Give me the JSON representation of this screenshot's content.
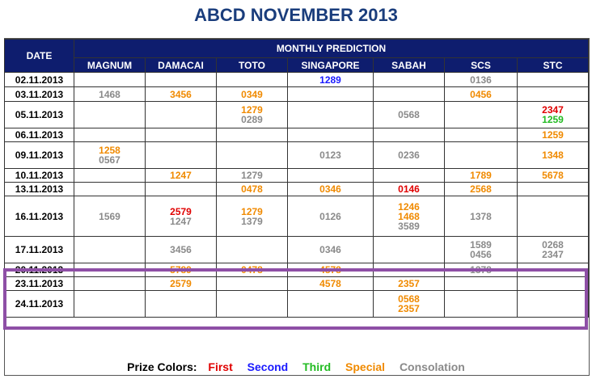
{
  "title": "ABCD NOVEMBER 2013",
  "header": {
    "date": "DATE",
    "monthly": "MONTHLY PREDICTION",
    "columns": [
      "MAGNUM",
      "DAMACAI",
      "TOTO",
      "SINGAPORE",
      "SABAH",
      "SCS",
      "STC"
    ]
  },
  "colors": {
    "first": "#e00000",
    "second": "#1a1aff",
    "third": "#22bb22",
    "special": "#f08a00",
    "consolation": "#8a8a8a",
    "header_bg": "#0e1d6e",
    "highlight_border": "#8e4fa6"
  },
  "rows": [
    {
      "date": "02.11.2013",
      "cells": [
        [],
        [],
        [],
        [
          [
            "1289",
            "second"
          ]
        ],
        [],
        [
          [
            "0136",
            "consolation"
          ]
        ],
        []
      ]
    },
    {
      "date": "03.11.2013",
      "cells": [
        [
          [
            "1468",
            "consolation"
          ]
        ],
        [
          [
            "3456",
            "special"
          ]
        ],
        [
          [
            "0349",
            "special"
          ]
        ],
        [],
        [],
        [
          [
            "0456",
            "special"
          ]
        ],
        []
      ]
    },
    {
      "date": "05.11.2013",
      "cells": [
        [],
        [],
        [
          [
            "1279",
            "special"
          ],
          [
            "0289",
            "consolation"
          ]
        ],
        [],
        [
          [
            "0568",
            "consolation"
          ]
        ],
        [],
        [
          [
            "2347",
            "first"
          ],
          [
            "1259",
            "third"
          ]
        ]
      ]
    },
    {
      "date": "06.11.2013",
      "cells": [
        [],
        [],
        [],
        [],
        [],
        [],
        [
          [
            "1259",
            "special"
          ]
        ]
      ]
    },
    {
      "date": "09.11.2013",
      "cells": [
        [
          [
            "1258",
            "special"
          ],
          [
            "0567",
            "consolation"
          ]
        ],
        [],
        [],
        [
          [
            "0123",
            "consolation"
          ]
        ],
        [
          [
            "0236",
            "consolation"
          ]
        ],
        [],
        [
          [
            "1348",
            "special"
          ]
        ]
      ]
    },
    {
      "date": "10.11.2013",
      "cells": [
        [],
        [
          [
            "1247",
            "special"
          ]
        ],
        [
          [
            "1279",
            "consolation"
          ]
        ],
        [],
        [],
        [
          [
            "1789",
            "special"
          ]
        ],
        [
          [
            "5678",
            "special"
          ]
        ]
      ]
    },
    {
      "date": "13.11.2013",
      "cells": [
        [],
        [],
        [
          [
            "0478",
            "special"
          ]
        ],
        [
          [
            "0346",
            "special"
          ]
        ],
        [
          [
            "0146",
            "first"
          ]
        ],
        [
          [
            "2568",
            "special"
          ]
        ],
        []
      ]
    },
    {
      "date": "16.11.2013",
      "cells": [
        [
          [
            "1569",
            "consolation"
          ]
        ],
        [
          [
            "2579",
            "first"
          ],
          [
            "1247",
            "consolation"
          ]
        ],
        [
          [
            "1279",
            "special"
          ],
          [
            "1379",
            "consolation"
          ]
        ],
        [
          [
            "0126",
            "consolation"
          ]
        ],
        [
          [
            "1246",
            "special"
          ],
          [
            "1468",
            "special"
          ],
          [
            "3589",
            "consolation"
          ]
        ],
        [
          [
            "1378",
            "consolation"
          ]
        ],
        []
      ]
    },
    {
      "date": "17.11.2013",
      "cells": [
        [],
        [
          [
            "3456",
            "consolation"
          ]
        ],
        [],
        [
          [
            "0346",
            "consolation"
          ]
        ],
        [],
        [
          [
            "1589",
            "consolation"
          ],
          [
            "0456",
            "consolation"
          ]
        ],
        [
          [
            "0268",
            "consolation"
          ],
          [
            "2347",
            "consolation"
          ]
        ]
      ]
    },
    {
      "date": "20.11.2013",
      "cells": [
        [],
        [
          [
            "5789",
            "special"
          ]
        ],
        [
          [
            "0478",
            "special"
          ]
        ],
        [
          [
            "4578",
            "special"
          ]
        ],
        [],
        [
          [
            "1378",
            "consolation"
          ]
        ],
        []
      ]
    },
    {
      "date": "23.11.2013",
      "cells": [
        [],
        [
          [
            "2579",
            "special"
          ]
        ],
        [],
        [
          [
            "4578",
            "special"
          ]
        ],
        [
          [
            "2357",
            "special"
          ]
        ],
        [],
        []
      ]
    },
    {
      "date": "24.11.2013",
      "cells": [
        [],
        [],
        [],
        [],
        [
          [
            "0568",
            "special"
          ],
          [
            "2357",
            "special"
          ]
        ],
        [],
        []
      ]
    }
  ],
  "legend": {
    "label": "Prize Colors:",
    "items": [
      {
        "text": "First",
        "kind": "first"
      },
      {
        "text": "Second",
        "kind": "second"
      },
      {
        "text": "Third",
        "kind": "third"
      },
      {
        "text": "Special",
        "kind": "special"
      },
      {
        "text": "Consolation",
        "kind": "consolation"
      }
    ]
  }
}
